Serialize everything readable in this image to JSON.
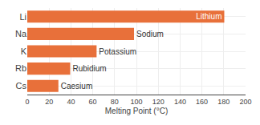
{
  "chart_data": {
    "type": "bar",
    "orientation": "horizontal",
    "categories": [
      "Li",
      "Na",
      "K",
      "Rb",
      "Cs"
    ],
    "values": [
      180.5,
      97.8,
      63.5,
      39.3,
      28.5
    ],
    "annotations": [
      "Lithium",
      "Sodium",
      "Potassium",
      "Rubidium",
      "Caesium"
    ],
    "color": "#E8703A",
    "xlabel": "Melting Point (°C)",
    "xlim": [
      0,
      200
    ],
    "xticks": [
      0,
      20,
      40,
      60,
      80,
      100,
      120,
      140,
      160,
      180,
      200
    ],
    "grid": true
  }
}
